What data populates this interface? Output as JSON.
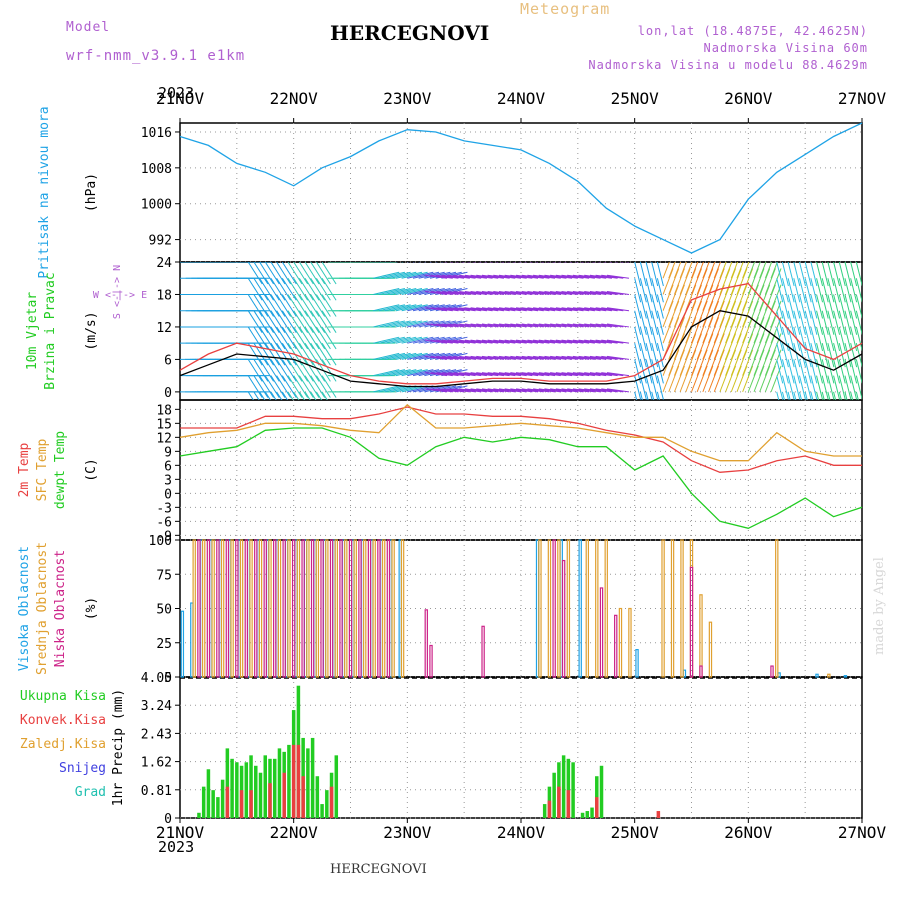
{
  "header": {
    "model_label": "Model",
    "model_name": "wrf-nmm_v3.9.1 e1km",
    "station": "HERCEGNOVI",
    "meteogram_label": "Meteogram",
    "lonlat": "lon,lat (18.4875E, 42.4625N)",
    "altitude": "Nadmorska Visina 60m",
    "model_altitude": "Nadmorska Visina u modelu 88.4629m",
    "year": "2023",
    "footer_station": "HERCEGNOVI",
    "credit": "made by Angel"
  },
  "colors": {
    "pressure": "#1fa3e6",
    "t2m": "#e84040",
    "sfc": "#e0a030",
    "dewpt": "#22cc22",
    "cloud_high": "#1fa3e6",
    "cloud_mid": "#e0a030",
    "cloud_low": "#cc2288",
    "precip_total": "#22cc22",
    "precip_conv": "#e84040",
    "grid": "#999999",
    "label_purple": "#b060d0",
    "label_orange": "#e8a838",
    "wind_gust": "#e84040",
    "wind_speed": "#000000"
  },
  "chart_data": [
    {
      "type": "line",
      "panel": "pressure",
      "ylabel_lines": [
        "Pritisak na nivou mora",
        "(hPa)"
      ],
      "yticks": [
        992,
        1000,
        1008,
        1016
      ],
      "ylim": [
        987,
        1018
      ],
      "x_unit": "hours from 2023-11-21 00:00 UTC",
      "series": [
        {
          "color_key": "pressure",
          "x": [
            0,
            6,
            12,
            18,
            24,
            30,
            36,
            42,
            48,
            54,
            60,
            66,
            72,
            78,
            84,
            90,
            96,
            102,
            108,
            114,
            120,
            126,
            132,
            138,
            144
          ],
          "y": [
            1015,
            1013,
            1009,
            1007,
            1004,
            1008,
            1010.5,
            1014,
            1016.5,
            1016,
            1014,
            1013,
            1012,
            1009,
            1005,
            999,
            995,
            992,
            989,
            992,
            1001,
            1007,
            1011,
            1015,
            1018
          ]
        }
      ]
    },
    {
      "type": "line",
      "panel": "wind",
      "ylabel_lines": [
        "10m Vjetar",
        "Brzina i Pravac",
        "(m/s)"
      ],
      "compass": "W <-|-> E",
      "compass_vertical": "S <-|-> N",
      "yticks": [
        0,
        6,
        12,
        18,
        24
      ],
      "ylim": [
        -1.5,
        24
      ],
      "barb_levels": [
        0,
        3,
        6,
        9,
        12,
        15,
        18,
        21,
        24
      ],
      "series": [
        {
          "name_key": "gust",
          "color_key": "wind_gust",
          "x": [
            0,
            6,
            12,
            18,
            24,
            30,
            36,
            42,
            48,
            54,
            60,
            66,
            72,
            78,
            84,
            90,
            96,
            102,
            108,
            114,
            120,
            126,
            132,
            138,
            144
          ],
          "y": [
            4,
            7,
            9,
            8,
            7,
            5,
            3,
            2,
            1.5,
            1.5,
            2,
            2.5,
            2.5,
            2,
            2,
            2,
            3,
            6,
            17,
            19,
            20,
            14,
            8,
            6,
            9
          ]
        },
        {
          "name_key": "speed",
          "color_key": "wind_speed",
          "x": [
            0,
            6,
            12,
            18,
            24,
            30,
            36,
            42,
            48,
            54,
            60,
            66,
            72,
            78,
            84,
            90,
            96,
            102,
            108,
            114,
            120,
            126,
            132,
            138,
            144
          ],
          "y": [
            3,
            5,
            7,
            6.5,
            6,
            4,
            2,
            1.5,
            1,
            1,
            1.5,
            2,
            2,
            1.5,
            1.5,
            1.5,
            2,
            4,
            12,
            15,
            14,
            10,
            6,
            4,
            7
          ]
        }
      ]
    },
    {
      "type": "line",
      "panel": "temperature",
      "ylabel_lines": [
        "2m Temp",
        "SFC Temp",
        "dewpt Temp",
        "(C)"
      ],
      "yticks": [
        -9,
        -6,
        -3,
        0,
        3,
        6,
        9,
        12,
        15,
        18
      ],
      "ylim": [
        -10,
        20
      ],
      "series": [
        {
          "color_key": "t2m",
          "x": [
            0,
            6,
            12,
            18,
            24,
            30,
            36,
            42,
            48,
            54,
            60,
            66,
            72,
            78,
            84,
            90,
            96,
            102,
            108,
            114,
            120,
            126,
            132,
            138,
            144
          ],
          "y": [
            14,
            14,
            14,
            16.5,
            16.5,
            16,
            16,
            17,
            18.5,
            17,
            17,
            16.5,
            16.5,
            16,
            15,
            13.5,
            12.5,
            11,
            7,
            4.5,
            5,
            7,
            8,
            6,
            6
          ]
        },
        {
          "color_key": "sfc",
          "x": [
            0,
            6,
            12,
            18,
            24,
            30,
            36,
            42,
            48,
            54,
            60,
            66,
            72,
            78,
            84,
            90,
            96,
            102,
            108,
            114,
            120,
            126,
            132,
            138,
            144
          ],
          "y": [
            12,
            13,
            13.5,
            15,
            15,
            14.5,
            13.5,
            13,
            19,
            14,
            14,
            14.5,
            15,
            14.5,
            14,
            13,
            12,
            12,
            9,
            7,
            7,
            13,
            9,
            8,
            8
          ]
        },
        {
          "color_key": "dewpt",
          "x": [
            0,
            6,
            12,
            18,
            24,
            30,
            36,
            42,
            48,
            54,
            60,
            66,
            72,
            78,
            84,
            90,
            96,
            102,
            108,
            114,
            120,
            126,
            132,
            138,
            144
          ],
          "y": [
            8,
            9,
            10,
            13.5,
            14,
            14,
            12,
            7.5,
            6,
            10,
            12,
            11,
            12,
            11.5,
            10,
            10,
            5,
            8,
            0,
            -6,
            -7.5,
            -4.5,
            -1,
            -5,
            -3
          ]
        }
      ]
    },
    {
      "type": "bar",
      "panel": "cloud",
      "ylabel_lines": [
        "Visoka Oblacnost",
        "Srednja Oblacnost",
        "Niska Oblacnost",
        "(%)"
      ],
      "yticks": [
        0,
        25,
        50,
        75,
        100
      ],
      "ylim": [
        0,
        100
      ],
      "series": [
        {
          "color_key": "cloud_high",
          "x": [
            0.5,
            2.5,
            4.5,
            6.5,
            8.5,
            10.5,
            12.5,
            14.5,
            16.5,
            18.5,
            20.5,
            22.5,
            24.5,
            26.5,
            28.5,
            30.5,
            32.5,
            34.5,
            36.5,
            38.5,
            40.5,
            42.5,
            44.5,
            46.5,
            75.5,
            80.5,
            84.5,
            96.5,
            106.5,
            126.5,
            134.5,
            140.5
          ],
          "y": [
            48,
            54,
            100,
            100,
            100,
            100,
            100,
            100,
            100,
            100,
            100,
            100,
            100,
            100,
            100,
            100,
            100,
            100,
            100,
            100,
            100,
            100,
            100,
            100,
            100,
            100,
            100,
            20,
            5,
            3,
            2,
            1
          ]
        },
        {
          "color_key": "cloud_mid",
          "x": [
            3,
            5,
            7,
            9,
            11,
            13,
            15,
            17,
            19,
            21,
            23,
            25,
            27,
            29,
            31,
            33,
            35,
            37,
            39,
            41,
            43,
            45,
            47,
            76,
            78,
            80,
            82,
            86,
            88,
            90,
            93,
            95,
            102,
            104,
            106,
            108,
            110,
            112,
            126,
            137
          ],
          "y": [
            100,
            100,
            100,
            100,
            100,
            100,
            100,
            100,
            100,
            100,
            100,
            100,
            100,
            100,
            100,
            100,
            100,
            100,
            100,
            100,
            100,
            100,
            100,
            100,
            100,
            100,
            100,
            100,
            100,
            100,
            50,
            50,
            100,
            100,
            100,
            100,
            60,
            40,
            100,
            2
          ]
        },
        {
          "color_key": "cloud_low",
          "x": [
            4,
            6,
            8,
            10,
            12,
            14,
            16,
            18,
            20,
            22,
            24,
            26,
            28,
            30,
            32,
            34,
            36,
            38,
            40,
            42,
            44,
            52,
            53,
            64,
            79,
            81,
            89,
            92,
            108,
            110,
            125
          ],
          "y": [
            100,
            100,
            100,
            100,
            100,
            100,
            100,
            100,
            100,
            100,
            100,
            100,
            100,
            100,
            100,
            100,
            100,
            100,
            100,
            100,
            100,
            49,
            23,
            37,
            100,
            85,
            65,
            45,
            80,
            8,
            8
          ]
        }
      ]
    },
    {
      "type": "bar",
      "panel": "precip",
      "ylabel_lines": [
        "1hr Precip (mm)"
      ],
      "legend": [
        "Ukupna Kisa",
        "Konvek.Kisa",
        "Zaledj.Kisa",
        "Snijeg",
        "Grad"
      ],
      "yticks": [
        0,
        0.81,
        1.62,
        2.43,
        3.24,
        4.05
      ],
      "ytick_labels": [
        "0",
        "0.81",
        "1.62",
        "2.43",
        "3.24",
        "4.05"
      ],
      "ylim": [
        0,
        4.05
      ],
      "series": [
        {
          "color_key": "precip_total",
          "x": [
            4,
            5,
            6,
            7,
            8,
            9,
            10,
            11,
            12,
            13,
            14,
            15,
            16,
            17,
            18,
            19,
            20,
            21,
            22,
            23,
            24,
            25,
            26,
            27,
            28,
            29,
            30,
            31,
            32,
            33,
            77,
            78,
            79,
            80,
            81,
            82,
            83,
            85,
            86,
            87,
            88,
            89
          ],
          "y": [
            0.15,
            0.9,
            1.4,
            0.8,
            0.6,
            1.1,
            2.0,
            1.7,
            1.6,
            1.5,
            1.6,
            1.8,
            1.5,
            1.3,
            1.8,
            1.7,
            1.7,
            2.0,
            1.9,
            2.1,
            3.1,
            3.8,
            2.3,
            2.0,
            2.3,
            1.2,
            0.4,
            0.8,
            1.3,
            1.8,
            0.4,
            0.9,
            1.3,
            1.6,
            1.8,
            1.7,
            1.6,
            0.15,
            0.2,
            0.3,
            1.2,
            1.5
          ]
        },
        {
          "color_key": "precip_conv",
          "x": [
            10,
            13,
            15,
            19,
            22,
            24,
            25,
            26,
            32,
            78,
            80,
            82,
            88,
            101
          ],
          "y": [
            0.9,
            0.8,
            0.8,
            1.0,
            1.3,
            2.1,
            2.1,
            1.2,
            0.9,
            0.5,
            0.9,
            0.8,
            0.6,
            0.2
          ]
        }
      ]
    }
  ],
  "x_axis": {
    "day_labels": [
      "21NOV",
      "22NOV",
      "23NOV",
      "24NOV",
      "25NOV",
      "26NOV",
      "27NOV"
    ],
    "hours": [
      0,
      24,
      48,
      72,
      96,
      120,
      144
    ]
  }
}
